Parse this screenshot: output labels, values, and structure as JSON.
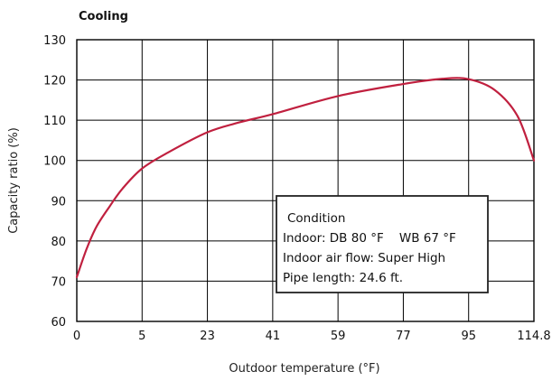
{
  "chart_data": {
    "type": "line",
    "title": "Cooling",
    "xlabel": "Outdoor temperature (°F)",
    "ylabel": "Capacity ratio (%)",
    "x_tick_labels": [
      "0",
      "5",
      "23",
      "41",
      "59",
      "77",
      "95",
      "114.8"
    ],
    "y_ticks": [
      60,
      70,
      80,
      90,
      100,
      110,
      120,
      130
    ],
    "ylim": [
      60,
      130
    ],
    "grid": true,
    "series": [
      {
        "color": "#c0203f",
        "points": [
          {
            "x_index": 0.0,
            "y": 71
          },
          {
            "x_index": 0.15,
            "y": 78
          },
          {
            "x_index": 0.3,
            "y": 83.5
          },
          {
            "x_index": 0.5,
            "y": 88.5
          },
          {
            "x_index": 0.7,
            "y": 93
          },
          {
            "x_index": 1.0,
            "y": 98
          },
          {
            "x_index": 1.4,
            "y": 102
          },
          {
            "x_index": 2.0,
            "y": 107
          },
          {
            "x_index": 2.5,
            "y": 109.5
          },
          {
            "x_index": 3.0,
            "y": 111.5
          },
          {
            "x_index": 4.0,
            "y": 116
          },
          {
            "x_index": 5.0,
            "y": 119
          },
          {
            "x_index": 5.6,
            "y": 120.3
          },
          {
            "x_index": 6.0,
            "y": 120.2
          },
          {
            "x_index": 6.4,
            "y": 117.5
          },
          {
            "x_index": 6.75,
            "y": 111
          },
          {
            "x_index": 7.0,
            "y": 100
          }
        ]
      }
    ],
    "annotation": {
      "lines": [
        "Condition",
        "Indoor: DB 80 °F    WB 67 °F",
        "Indoor air flow: Super High",
        "Pipe length: 24.6 ft."
      ]
    }
  }
}
